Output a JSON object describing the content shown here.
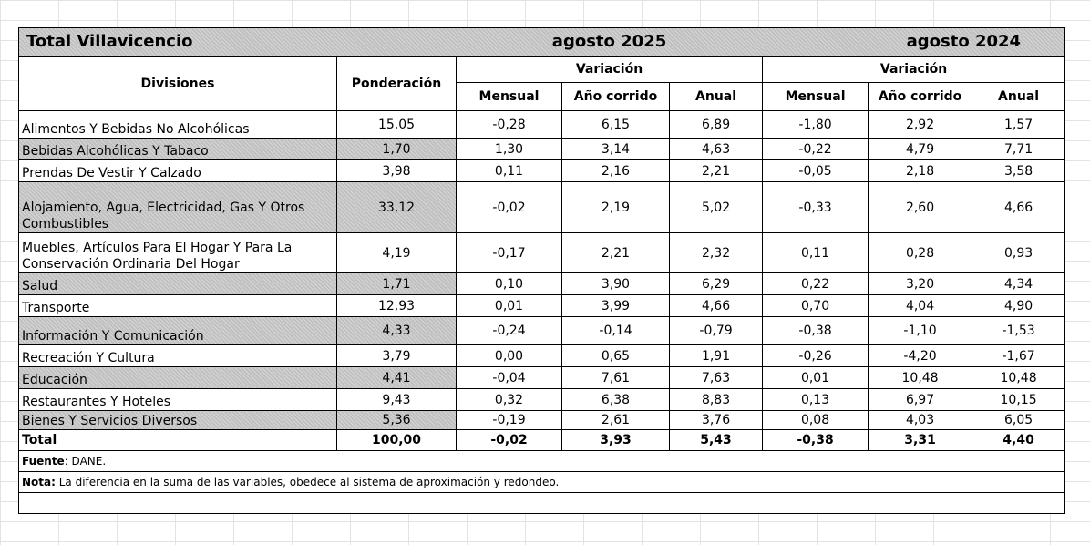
{
  "title": {
    "left": "Total Villavicencio",
    "period_2025": "agosto 2025",
    "period_2024": "agosto 2024"
  },
  "headers": {
    "divisiones": "Divisiones",
    "ponderacion": "Ponderación",
    "variacion_2025": "Variación",
    "variacion_2024": "Variación",
    "mensual_2025": "Mensual",
    "ano_corrido_2025": "Año corrido",
    "anual_2025": "Anual",
    "mensual_2024": "Mensual",
    "ano_corrido_2024": "Año corrido",
    "anual_2024": "Anual"
  },
  "rows": [
    {
      "division": "Alimentos Y Bebidas No Alcohólicas",
      "ponderacion": "15,05",
      "m25": "-0,28",
      "ac25": "6,15",
      "a25": "6,89",
      "m24": "-1,80",
      "ac24": "2,92",
      "a24": "1,57"
    },
    {
      "division": "Bebidas Alcohólicas Y Tabaco",
      "ponderacion": "1,70",
      "m25": "1,30",
      "ac25": "3,14",
      "a25": "4,63",
      "m24": "-0,22",
      "ac24": "4,79",
      "a24": "7,71"
    },
    {
      "division": "Prendas De Vestir Y Calzado",
      "ponderacion": "3,98",
      "m25": "0,11",
      "ac25": "2,16",
      "a25": "2,21",
      "m24": "-0,05",
      "ac24": "2,18",
      "a24": "3,58"
    },
    {
      "division": "Alojamiento, Agua, Electricidad, Gas Y Otros Combustibles",
      "ponderacion": "33,12",
      "m25": "-0,02",
      "ac25": "2,19",
      "a25": "5,02",
      "m24": "-0,33",
      "ac24": "2,60",
      "a24": "4,66"
    },
    {
      "division": "Muebles, Artículos Para El Hogar Y Para La Conservación Ordinaria Del Hogar",
      "ponderacion": "4,19",
      "m25": "-0,17",
      "ac25": "2,21",
      "a25": "2,32",
      "m24": "0,11",
      "ac24": "0,28",
      "a24": "0,93"
    },
    {
      "division": "Salud",
      "ponderacion": "1,71",
      "m25": "0,10",
      "ac25": "3,90",
      "a25": "6,29",
      "m24": "0,22",
      "ac24": "3,20",
      "a24": "4,34"
    },
    {
      "division": "Transporte",
      "ponderacion": "12,93",
      "m25": "0,01",
      "ac25": "3,99",
      "a25": "4,66",
      "m24": "0,70",
      "ac24": "4,04",
      "a24": "4,90"
    },
    {
      "division": "Información Y Comunicación",
      "ponderacion": "4,33",
      "m25": "-0,24",
      "ac25": "-0,14",
      "a25": "-0,79",
      "m24": "-0,38",
      "ac24": "-1,10",
      "a24": "-1,53"
    },
    {
      "division": "Recreación Y Cultura",
      "ponderacion": "3,79",
      "m25": "0,00",
      "ac25": "0,65",
      "a25": "1,91",
      "m24": "-0,26",
      "ac24": "-4,20",
      "a24": "-1,67"
    },
    {
      "division": "Educación",
      "ponderacion": "4,41",
      "m25": "-0,04",
      "ac25": "7,61",
      "a25": "7,63",
      "m24": "0,01",
      "ac24": "10,48",
      "a24": "10,48"
    },
    {
      "division": "Restaurantes Y Hoteles",
      "ponderacion": "9,43",
      "m25": "0,32",
      "ac25": "6,38",
      "a25": "8,83",
      "m24": "0,13",
      "ac24": "6,97",
      "a24": "10,15"
    },
    {
      "division": "Bienes Y Servicios Diversos",
      "ponderacion": "5,36",
      "m25": "-0,19",
      "ac25": "2,61",
      "a25": "3,76",
      "m24": "0,08",
      "ac24": "4,03",
      "a24": "6,05"
    }
  ],
  "total": {
    "division": "Total",
    "ponderacion": "100,00",
    "m25": "-0,02",
    "ac25": "3,93",
    "a25": "5,43",
    "m24": "-0,38",
    "ac24": "3,31",
    "a24": "4,40"
  },
  "footer": {
    "fuente_label": "Fuente",
    "fuente_text": ": DANE.",
    "nota_label": "Nota:",
    "nota_text": " La diferencia en la suma de las variables, obedece al sistema de aproximación y redondeo."
  },
  "colors": {
    "shade": "#c0c0c0",
    "grid": "#e3e3e3"
  }
}
